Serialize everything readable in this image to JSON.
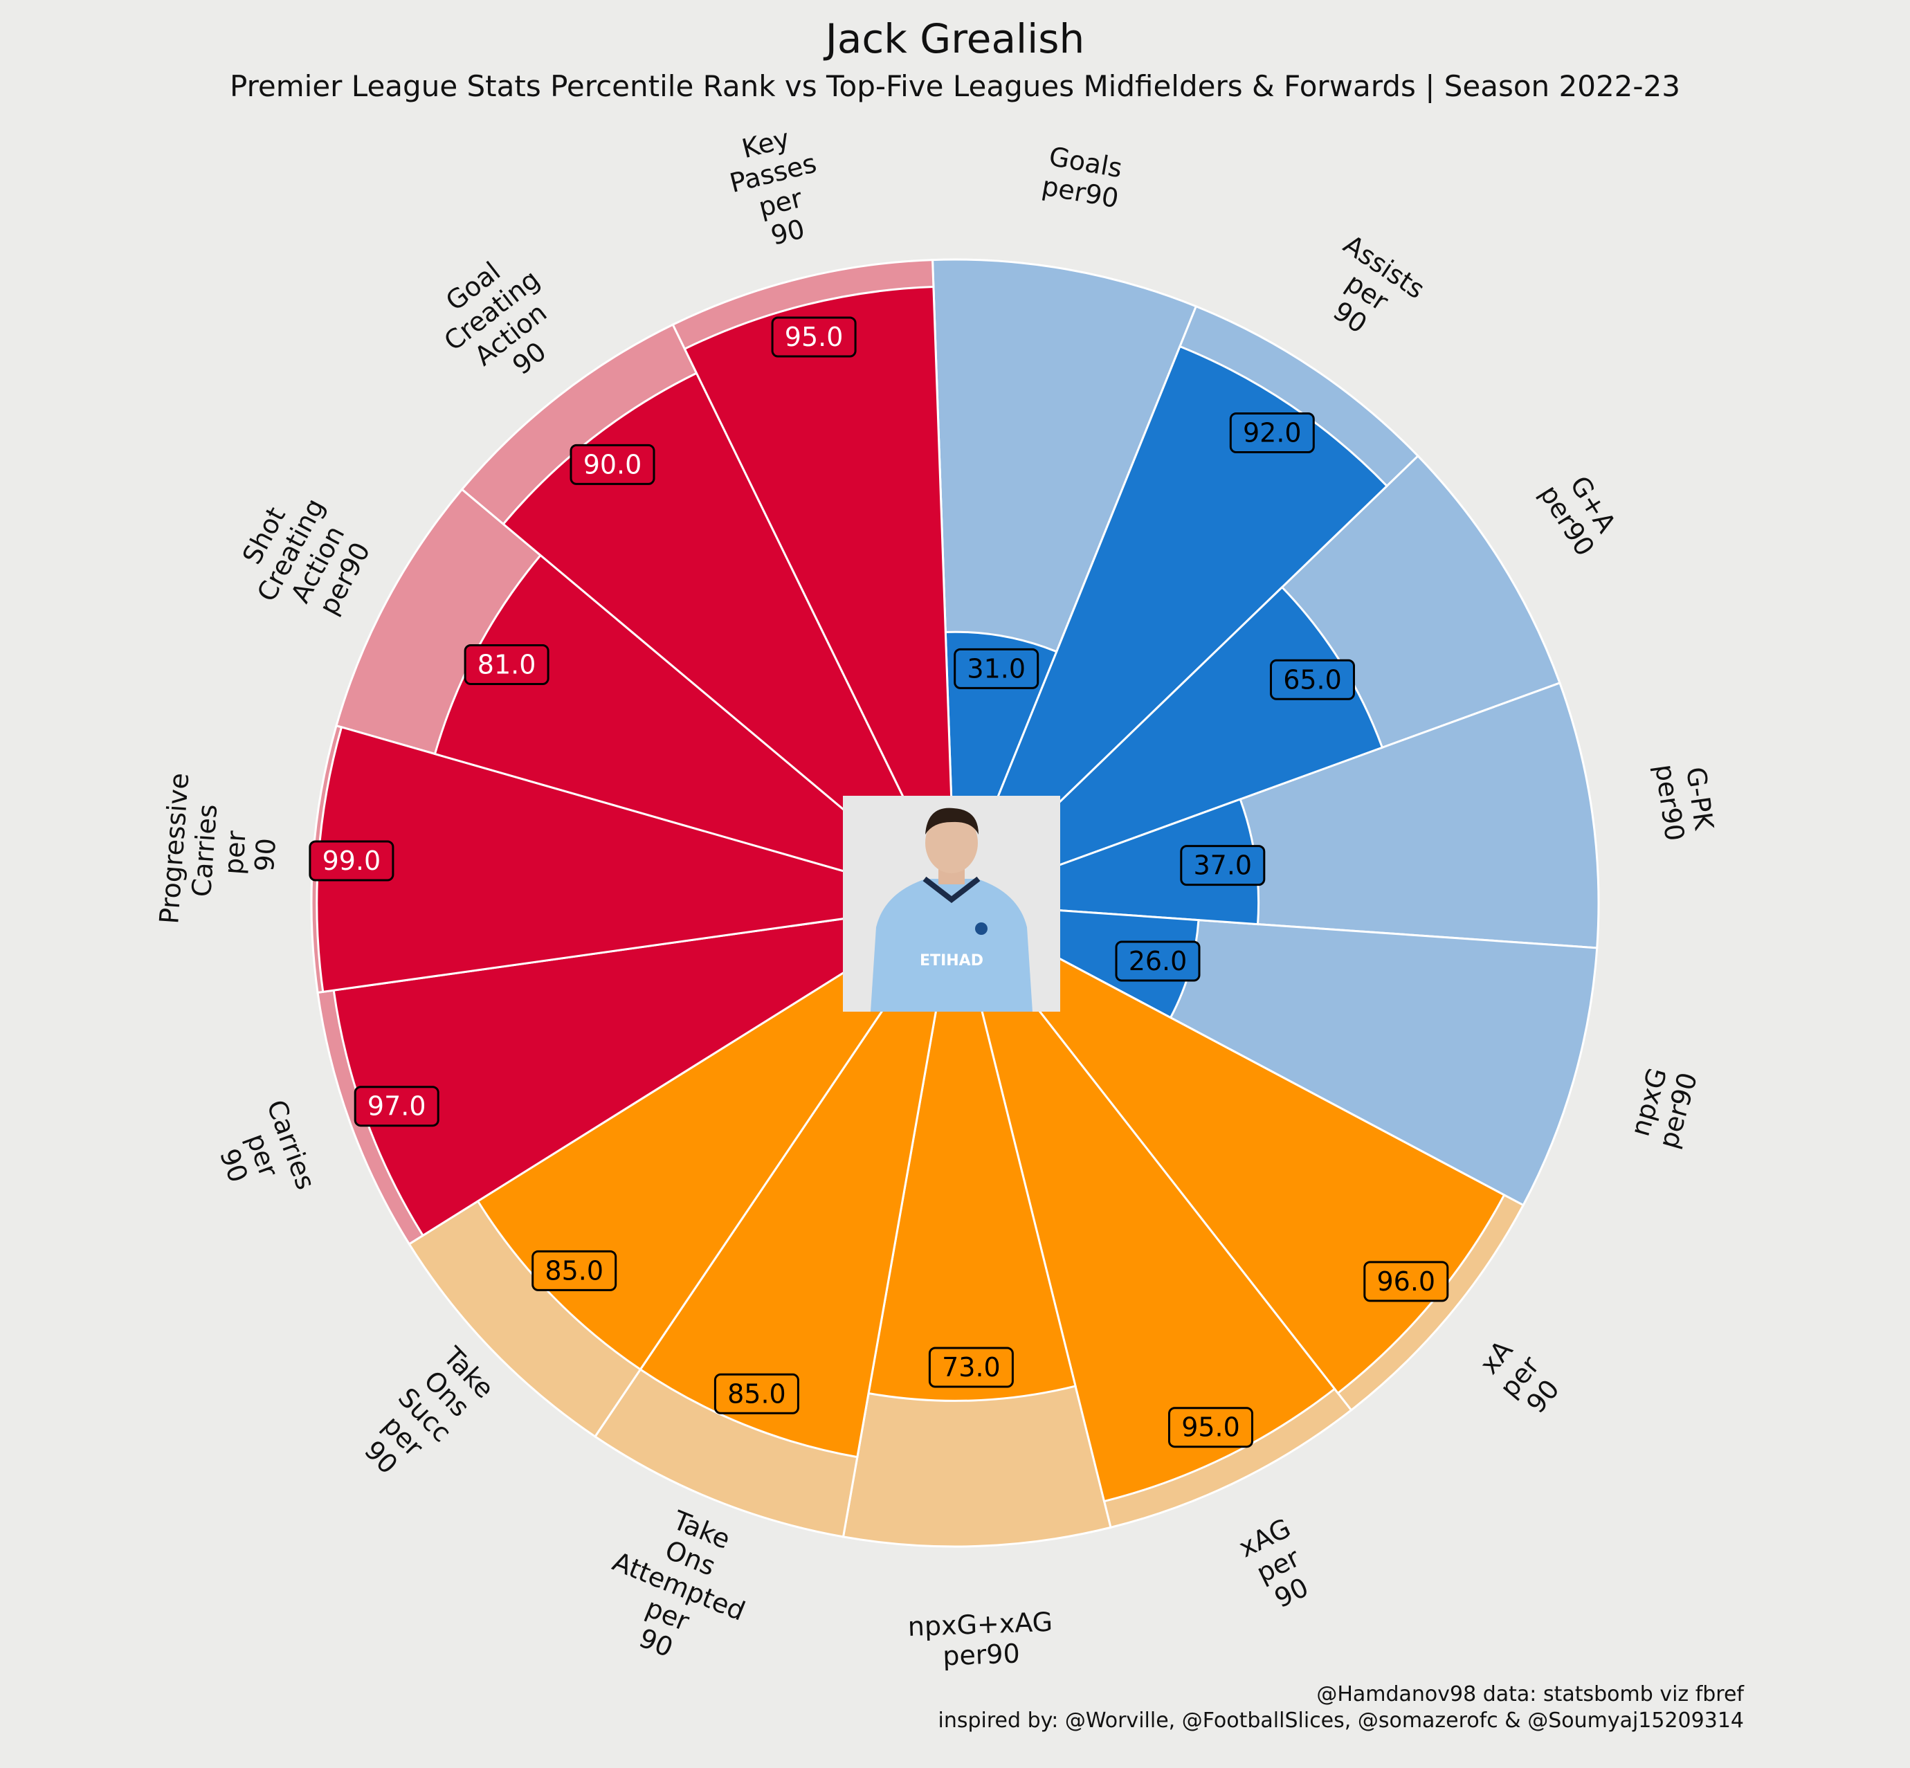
{
  "chart_data": {
    "type": "polar-bar",
    "title": "Jack Grealish",
    "subtitle": "Premier League Stats Percentile Rank vs Top-Five Leagues Midfielders & Forwards | Season 2022-23",
    "rlim": [
      0,
      100
    ],
    "categories": [
      "Goals\nper90",
      "Assists\nper\n90",
      "G+A\nper90",
      "G-PK\nper90",
      "npxG\nper90",
      "xA\nper\n90",
      "xAG\nper\n90",
      "npxG+xAG\nper90",
      "Take\nOns\nAttempted\nper\n90",
      "Take\nOns\nSucc\nper\n90",
      "Carries\nper\n90",
      "Progressive\nCarries\nper\n90",
      "Shot\nCreating\nAction\nper90",
      "Goal\nCreating\nAction\n90",
      "Key\nPasses\nper\n90"
    ],
    "values": [
      31,
      92,
      65,
      37,
      26,
      96,
      95,
      73,
      85,
      85,
      97,
      99,
      81,
      90,
      95
    ],
    "value_labels": [
      "31.0",
      "92.0",
      "65.0",
      "37.0",
      "26.0",
      "96.0",
      "95.0",
      "73.0",
      "85.0",
      "85.0",
      "97.0",
      "99.0",
      "81.0",
      "90.0",
      "95.0"
    ],
    "groups": [
      "attacking",
      "attacking",
      "attacking",
      "attacking",
      "attacking",
      "possession",
      "possession",
      "possession",
      "possession",
      "possession",
      "passing",
      "passing",
      "passing",
      "passing",
      "passing"
    ],
    "colors": {
      "attacking": {
        "bar": "#1a78cf",
        "background": "#98bce0",
        "label_text": "#000000"
      },
      "possession": {
        "bar": "#ff9300",
        "background": "#f2c78e",
        "label_text": "#000000"
      },
      "passing": {
        "bar": "#d70232",
        "background": "#e6909c",
        "label_text": "#ffffff"
      },
      "edge": "#ffffff",
      "page_background": "#ececea"
    },
    "center_image": "player photo"
  },
  "credits": {
    "line1": "@Hamdanov98 data: statsbomb viz fbref",
    "line2": "inspired by: @Worville, @FootballSlices, @somazerofc & @Soumyaj15209314"
  }
}
